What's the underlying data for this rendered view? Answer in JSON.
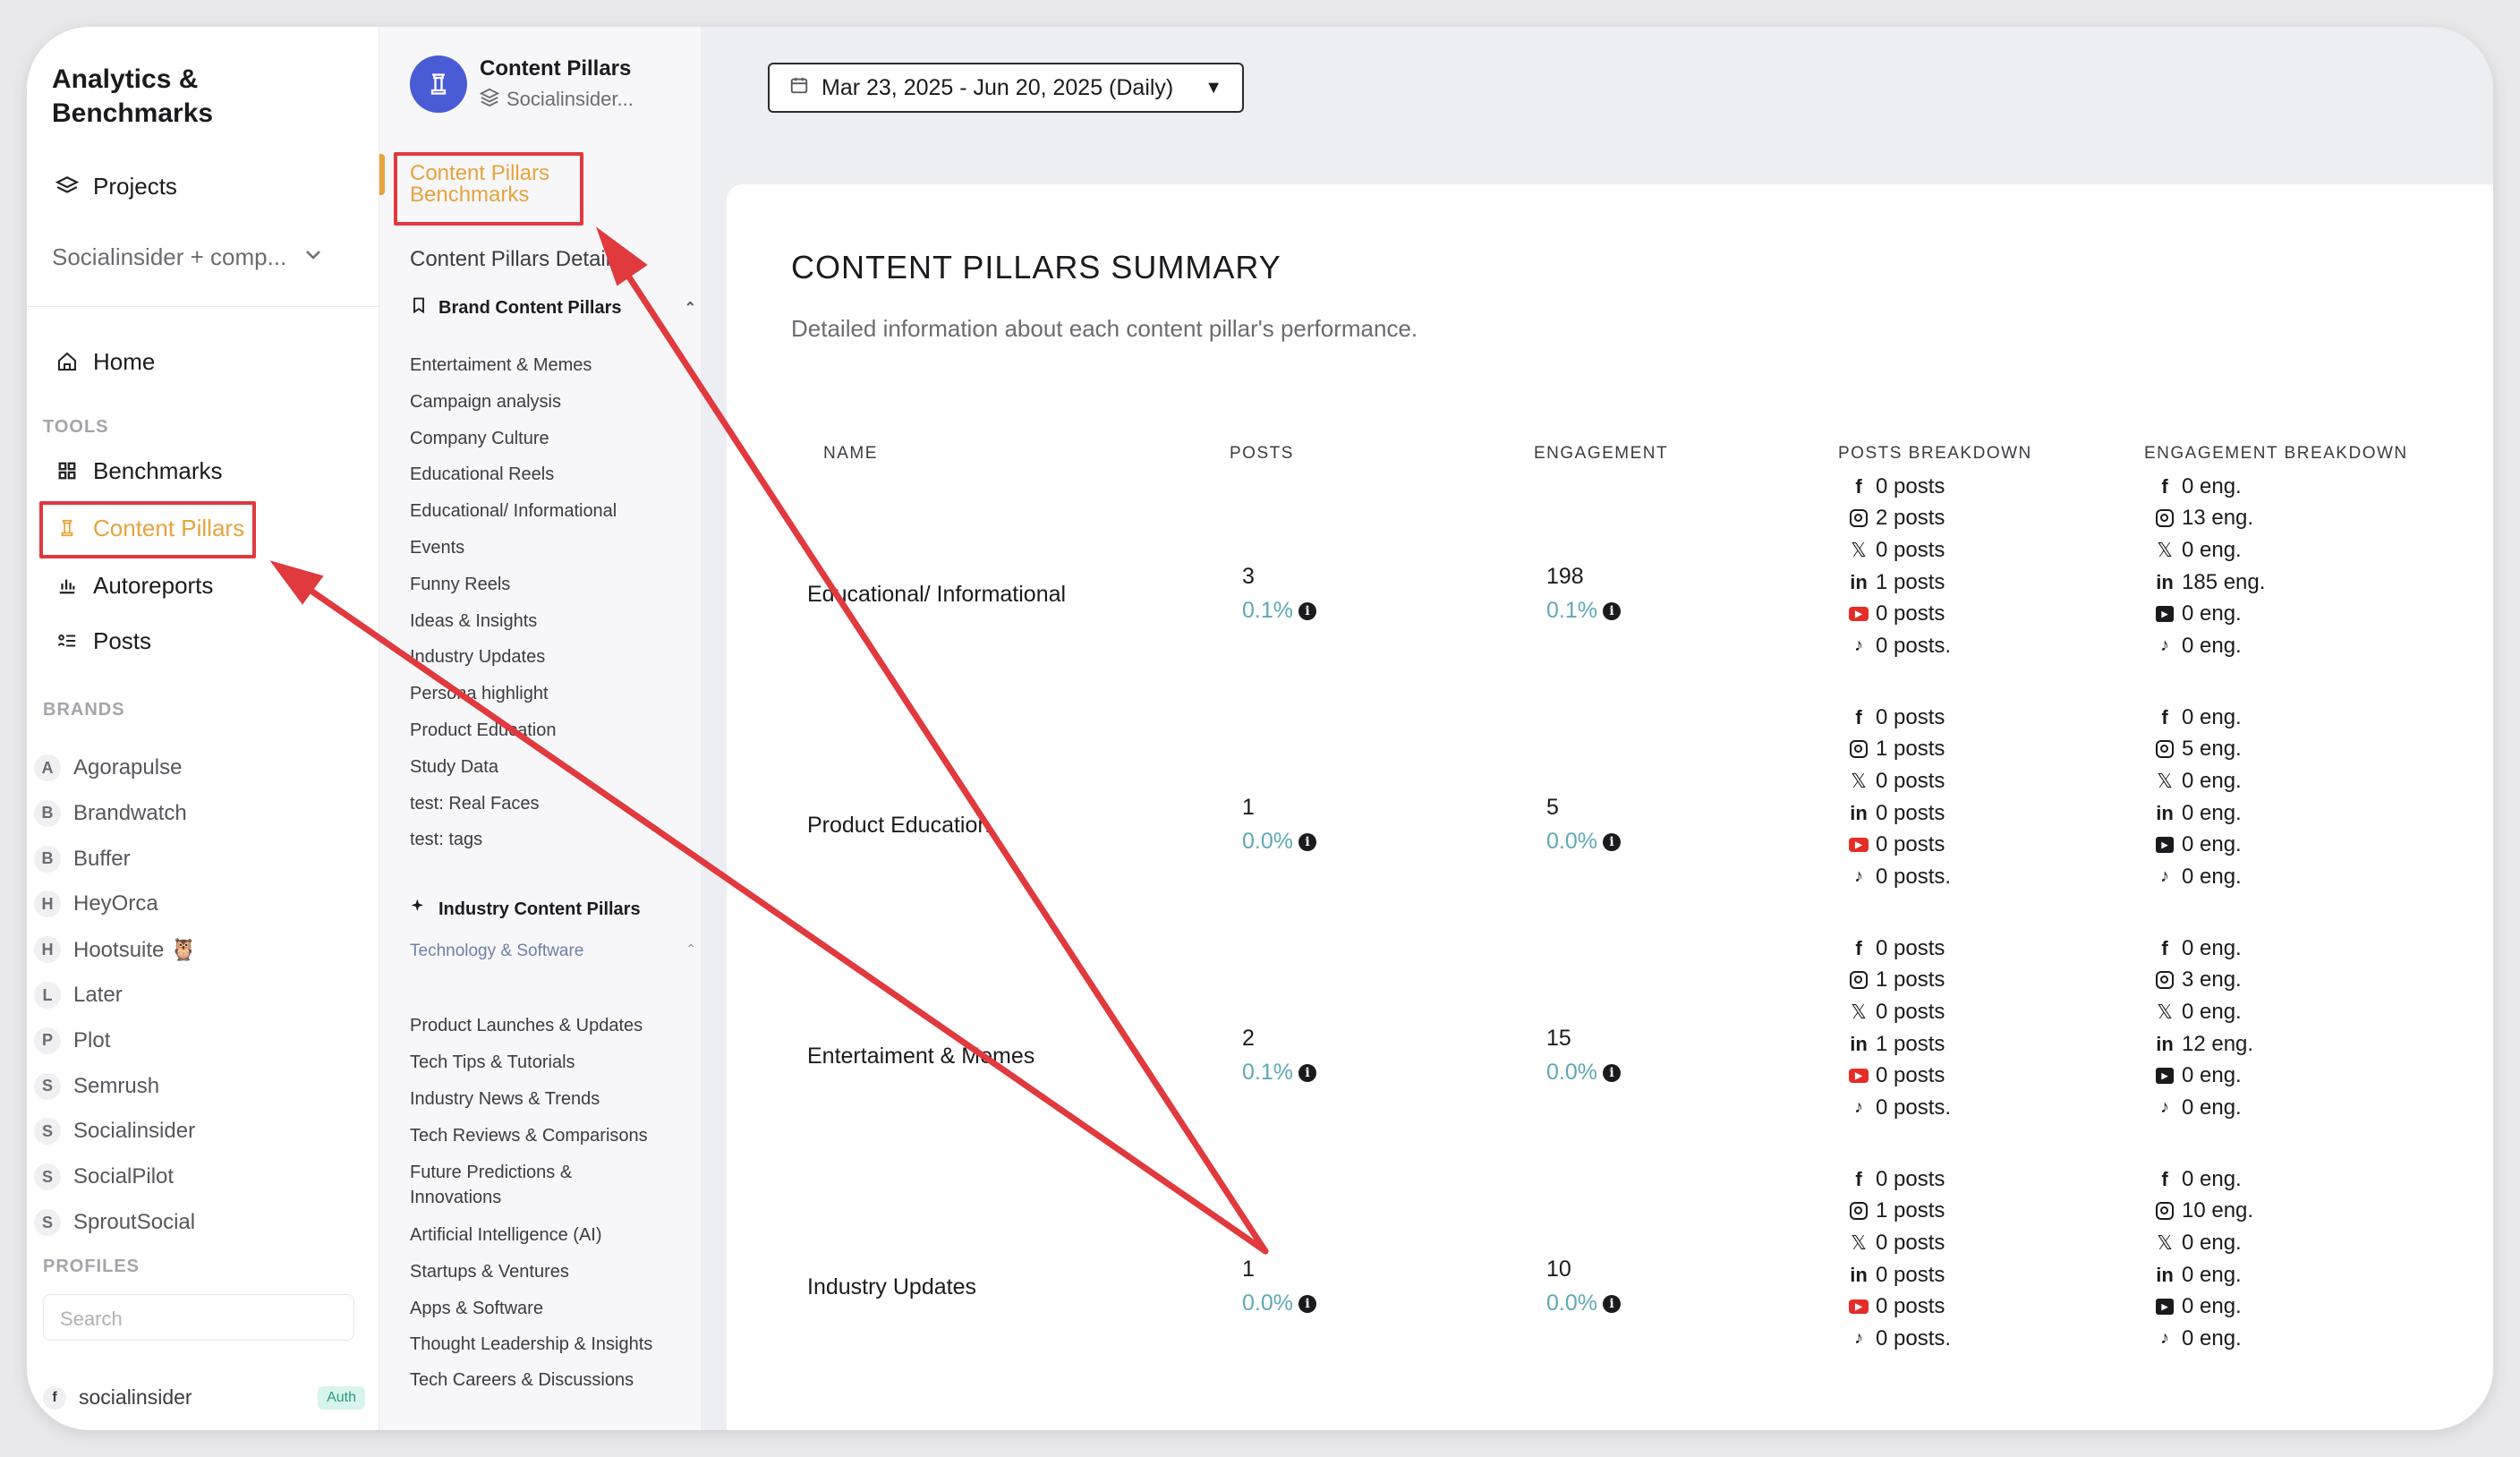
{
  "app": {
    "title_line1": "Analytics &",
    "title_line2": "Benchmarks"
  },
  "nav": {
    "projects": "Projects",
    "project_select": "Socialinsider + comp...",
    "home": "Home",
    "tools_label": "TOOLS",
    "benchmarks": "Benchmarks",
    "content_pillars": "Content Pillars",
    "autoreports": "Autoreports",
    "posts": "Posts",
    "brands_label": "BRANDS",
    "brands": [
      {
        "letter": "A",
        "name": "Agorapulse"
      },
      {
        "letter": "B",
        "name": "Brandwatch"
      },
      {
        "letter": "B",
        "name": "Buffer"
      },
      {
        "letter": "H",
        "name": "HeyOrca"
      },
      {
        "letter": "H",
        "name": "Hootsuite 🦉"
      },
      {
        "letter": "L",
        "name": "Later"
      },
      {
        "letter": "P",
        "name": "Plot"
      },
      {
        "letter": "S",
        "name": "Semrush"
      },
      {
        "letter": "S",
        "name": "Socialinsider"
      },
      {
        "letter": "S",
        "name": "SocialPilot"
      },
      {
        "letter": "S",
        "name": "SproutSocial"
      }
    ],
    "profiles_label": "PROFILES",
    "search_placeholder": "Search",
    "profile_name": "socialinsider",
    "profile_badge": "Auth"
  },
  "pillars_panel": {
    "title": "Content Pillars",
    "subtitle": "Socialinsider...",
    "link_benchmarks_1": "Content Pillars",
    "link_benchmarks_2": "Benchmarks",
    "link_details": "Content Pillars Details",
    "brand_group": "Brand Content Pillars",
    "brand_items": [
      "Entertaiment & Memes",
      "Campaign analysis",
      "Company Culture",
      "Educational Reels",
      "Educational/ Informational",
      "Events",
      "Funny Reels",
      "Ideas & Insights",
      "Industry Updates",
      "Persona highlight",
      "Product Education",
      "Study Data",
      "test: Real Faces",
      "test: tags"
    ],
    "industry_group": "Industry Content Pillars",
    "industry_subgroup": "Technology & Software",
    "industry_items": [
      "Product Launches & Updates",
      "Tech Tips & Tutorials",
      "Industry News & Trends",
      "Tech Reviews & Comparisons",
      "Future Predictions & Innovations",
      "Artificial Intelligence (AI)",
      "Startups & Ventures",
      "Apps & Software",
      "Thought Leadership & Insights",
      "Tech Careers & Discussions"
    ]
  },
  "main": {
    "date_range": "Mar 23, 2025 - Jun 20, 2025 (Daily)",
    "summary_title": "CONTENT PILLARS SUMMARY",
    "summary_sub": "Detailed information about each content pillar's performance.",
    "columns": {
      "name": "NAME",
      "posts": "POSTS",
      "engagement": "ENGAGEMENT",
      "posts_breakdown": "POSTS BREAKDOWN",
      "engagement_breakdown": "ENGAGEMENT BREAKDOWN"
    },
    "rows": [
      {
        "name": "Educational/ Informational",
        "posts": "3",
        "posts_pct": "0.1%",
        "engagement": "198",
        "engagement_pct": "0.1%",
        "pb": [
          "0 posts",
          "2 posts",
          "0 posts",
          "1 posts",
          "0 posts",
          "0 posts."
        ],
        "eb": [
          "0 eng.",
          "13 eng.",
          "0 eng.",
          "185 eng.",
          "0 eng.",
          "0 eng."
        ]
      },
      {
        "name": "Product Education",
        "posts": "1",
        "posts_pct": "0.0%",
        "engagement": "5",
        "engagement_pct": "0.0%",
        "pb": [
          "0 posts",
          "1 posts",
          "0 posts",
          "0 posts",
          "0 posts",
          "0 posts."
        ],
        "eb": [
          "0 eng.",
          "5 eng.",
          "0 eng.",
          "0 eng.",
          "0 eng.",
          "0 eng."
        ]
      },
      {
        "name": "Entertaiment & Memes",
        "posts": "2",
        "posts_pct": "0.1%",
        "engagement": "15",
        "engagement_pct": "0.0%",
        "pb": [
          "0 posts",
          "1 posts",
          "0 posts",
          "1 posts",
          "0 posts",
          "0 posts."
        ],
        "eb": [
          "0 eng.",
          "3 eng.",
          "0 eng.",
          "12 eng.",
          "0 eng.",
          "0 eng."
        ]
      },
      {
        "name": "Industry Updates",
        "posts": "1",
        "posts_pct": "0.0%",
        "engagement": "10",
        "engagement_pct": "0.0%",
        "pb": [
          "0 posts",
          "1 posts",
          "0 posts",
          "0 posts",
          "0 posts",
          "0 posts."
        ],
        "eb": [
          "0 eng.",
          "10 eng.",
          "0 eng.",
          "0 eng.",
          "0 eng.",
          "0 eng."
        ]
      }
    ]
  },
  "colors": {
    "accent": "#e8a33c",
    "annotation_red": "#e0393e",
    "pct_teal": "#5fa8b8",
    "avatar_blue": "#4a5bd6"
  }
}
